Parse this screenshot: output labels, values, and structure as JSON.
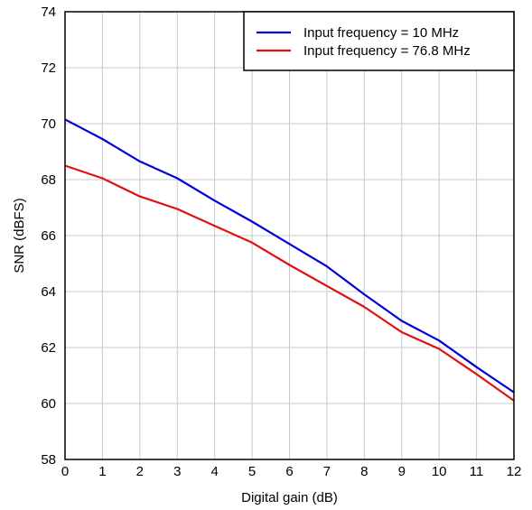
{
  "chart_data": {
    "type": "line",
    "title": "",
    "xlabel": "Digital gain (dB)",
    "ylabel": "SNR (dBFS)",
    "xlim": [
      0,
      12
    ],
    "ylim": [
      58,
      74
    ],
    "x_ticks": [
      "0",
      "1",
      "2",
      "3",
      "4",
      "5",
      "6",
      "7",
      "8",
      "9",
      "10",
      "11",
      "12"
    ],
    "y_ticks": [
      "58",
      "60",
      "62",
      "64",
      "66",
      "68",
      "70",
      "72",
      "74"
    ],
    "grid": true,
    "legend_position": "top-right",
    "x": [
      0,
      1,
      2,
      3,
      4,
      5,
      6,
      7,
      8,
      9,
      10,
      11,
      12
    ],
    "series": [
      {
        "name": "Input frequency = 10 MHz",
        "color": "#0000dd",
        "values": [
          70.15,
          69.45,
          68.65,
          68.05,
          67.25,
          66.5,
          65.7,
          64.9,
          63.9,
          62.95,
          62.25,
          61.3,
          60.4
        ]
      },
      {
        "name": "Input frequency = 76.8 MHz",
        "color": "#e01010",
        "values": [
          68.5,
          68.05,
          67.4,
          66.95,
          66.35,
          65.75,
          64.95,
          64.2,
          63.45,
          62.55,
          61.95,
          61.05,
          60.1
        ]
      }
    ]
  }
}
